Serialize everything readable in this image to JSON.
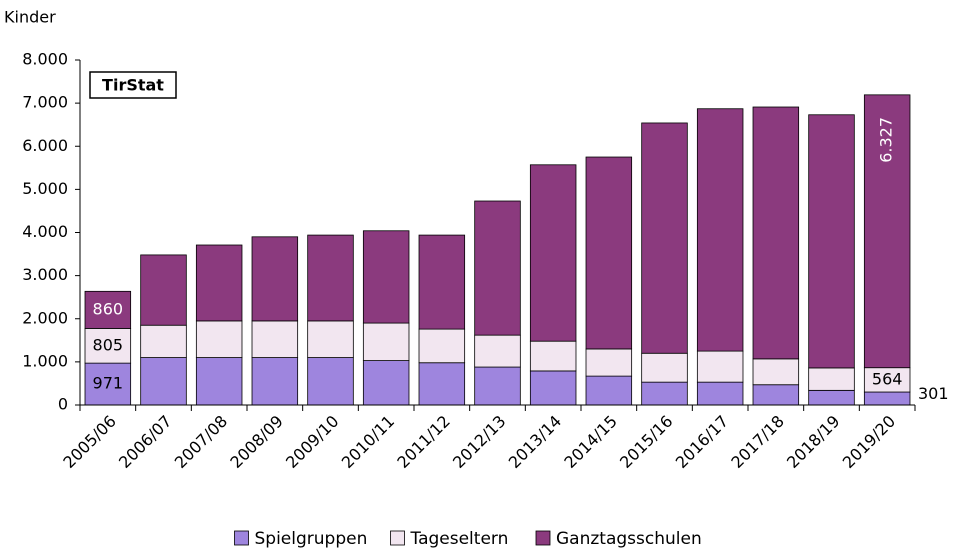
{
  "chart_data": {
    "type": "stacked_bar",
    "y_label": "Kinder",
    "annotation": "TirStat",
    "categories": [
      "2005/06",
      "2006/07",
      "2007/08",
      "2008/09",
      "2009/10",
      "2010/11",
      "2011/12",
      "2012/13",
      "2013/14",
      "2014/15",
      "2015/16",
      "2016/17",
      "2017/18",
      "2018/19",
      "2019/20"
    ],
    "series": [
      {
        "name": "Spielgruppen",
        "color": "#9e85de",
        "values": [
          971,
          1100,
          1100,
          1100,
          1100,
          1030,
          980,
          880,
          790,
          670,
          530,
          530,
          470,
          340,
          301
        ],
        "value_labels": [
          "971",
          null,
          null,
          null,
          null,
          null,
          null,
          null,
          null,
          null,
          null,
          null,
          null,
          null,
          "301"
        ]
      },
      {
        "name": "Tageseltern",
        "color": "#f2e6f0",
        "values": [
          805,
          750,
          850,
          850,
          850,
          870,
          780,
          740,
          690,
          630,
          670,
          720,
          600,
          520,
          564
        ],
        "value_labels": [
          "805",
          null,
          null,
          null,
          null,
          null,
          null,
          null,
          null,
          null,
          null,
          null,
          null,
          null,
          "564"
        ]
      },
      {
        "name": "Ganztagsschulen",
        "color": "#8b3a7e",
        "values": [
          860,
          1630,
          1760,
          1950,
          1990,
          2140,
          2180,
          3110,
          4090,
          4450,
          5340,
          5620,
          5840,
          5870,
          6327
        ],
        "value_labels": [
          "860",
          null,
          null,
          null,
          null,
          null,
          null,
          null,
          null,
          null,
          null,
          null,
          null,
          null,
          "6.327"
        ]
      }
    ],
    "ylim": [
      0,
      8000
    ],
    "yticks": [
      0,
      {
        "value": 1000,
        "label": "1.000"
      },
      {
        "value": 2000,
        "label": "2.000"
      },
      {
        "value": 3000,
        "label": "3.000"
      },
      {
        "value": 4000,
        "label": "4.000"
      },
      {
        "value": 5000,
        "label": "5.000"
      },
      {
        "value": 6000,
        "label": "6.000"
      },
      {
        "value": 7000,
        "label": "7.000"
      },
      {
        "value": 8000,
        "label": "8.000"
      }
    ],
    "legend": "bottom"
  }
}
